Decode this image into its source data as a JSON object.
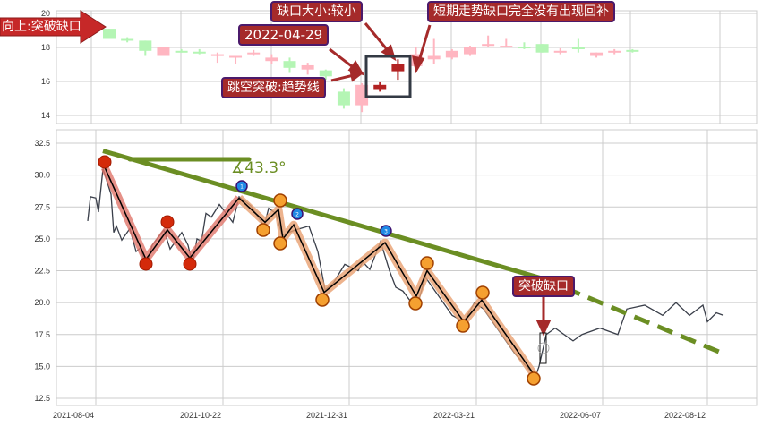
{
  "annotations": {
    "breakout_arrow": "向上:突破缺口",
    "gap_size": "缺口大小:较小",
    "date": "2022-04-29",
    "jump": "跳空突破:趋势线",
    "no_fill": "短期走势缺口完全没有出现回补",
    "breakout_box": "突破缺口",
    "angle": "∡43.3°"
  },
  "chart_data": [
    {
      "type": "candlestick",
      "yticks": [
        "14",
        "16",
        "18",
        "20"
      ],
      "ylim": [
        13.6,
        20.1
      ],
      "grid": true,
      "colors": {
        "up": "#ffb6c1",
        "down": "#b4f5b4",
        "highlight": "#b22222"
      },
      "candles": [
        {
          "o": 18.5,
          "c": 19.1,
          "h": 19.1,
          "l": 18.5,
          "dir": "down"
        },
        {
          "o": 18.5,
          "c": 18.5,
          "h": 18.6,
          "l": 18.3,
          "dir": "down"
        },
        {
          "o": 18.4,
          "c": 17.8,
          "h": 18.4,
          "l": 17.5,
          "dir": "down"
        },
        {
          "o": 17.5,
          "c": 18.0,
          "h": 18.0,
          "l": 17.5,
          "dir": "up"
        },
        {
          "o": 17.8,
          "c": 17.8,
          "h": 17.9,
          "l": 17.7,
          "dir": "down"
        },
        {
          "o": 17.75,
          "c": 17.75,
          "h": 17.9,
          "l": 17.6,
          "dir": "down"
        },
        {
          "o": 17.6,
          "c": 17.6,
          "h": 17.7,
          "l": 17.1,
          "dir": "up"
        },
        {
          "o": 17.5,
          "c": 17.5,
          "h": 17.5,
          "l": 17.0,
          "dir": "up"
        },
        {
          "o": 17.7,
          "c": 17.7,
          "h": 17.85,
          "l": 17.5,
          "dir": "up"
        },
        {
          "o": 17.2,
          "c": 17.4,
          "h": 17.6,
          "l": 17.0,
          "dir": "up"
        },
        {
          "o": 17.2,
          "c": 16.8,
          "h": 17.4,
          "l": 16.5,
          "dir": "down"
        },
        {
          "o": 16.7,
          "c": 16.95,
          "h": 17.1,
          "l": 16.4,
          "dir": "up"
        },
        {
          "o": 16.65,
          "c": 16.3,
          "h": 16.7,
          "l": 16.1,
          "dir": "down"
        },
        {
          "o": 15.4,
          "c": 14.6,
          "h": 15.6,
          "l": 14.4,
          "dir": "down"
        },
        {
          "o": 14.6,
          "c": 15.8,
          "h": 15.9,
          "l": 14.2,
          "dir": "up"
        },
        {
          "o": 15.5,
          "c": 15.8,
          "h": 15.95,
          "l": 15.4,
          "dir": "highlight"
        },
        {
          "o": 16.6,
          "c": 17.05,
          "h": 17.3,
          "l": 16.1,
          "dir": "highlight"
        },
        {
          "o": 16.9,
          "c": 17.6,
          "h": 18.0,
          "l": 16.9,
          "dir": "up"
        },
        {
          "o": 17.3,
          "c": 17.5,
          "h": 18.5,
          "l": 17.0,
          "dir": "up"
        },
        {
          "o": 17.4,
          "c": 17.8,
          "h": 17.9,
          "l": 17.3,
          "dir": "up"
        },
        {
          "o": 17.6,
          "c": 18.0,
          "h": 18.1,
          "l": 17.5,
          "dir": "up"
        },
        {
          "o": 18.2,
          "c": 18.2,
          "h": 18.7,
          "l": 18.0,
          "dir": "up"
        },
        {
          "o": 18.1,
          "c": 18.1,
          "h": 18.5,
          "l": 18.0,
          "dir": "up"
        },
        {
          "o": 18.05,
          "c": 18.05,
          "h": 18.3,
          "l": 17.9,
          "dir": "down"
        },
        {
          "o": 18.2,
          "c": 17.7,
          "h": 18.2,
          "l": 17.7,
          "dir": "down"
        },
        {
          "o": 17.8,
          "c": 17.8,
          "h": 17.95,
          "l": 17.6,
          "dir": "up"
        },
        {
          "o": 18.0,
          "c": 18.0,
          "h": 18.5,
          "l": 17.7,
          "dir": "down"
        },
        {
          "o": 17.5,
          "c": 17.7,
          "h": 17.7,
          "l": 17.4,
          "dir": "up"
        },
        {
          "o": 17.8,
          "c": 17.8,
          "h": 17.9,
          "l": 17.6,
          "dir": "up"
        },
        {
          "o": 17.85,
          "c": 17.85,
          "h": 17.9,
          "l": 17.7,
          "dir": "down"
        }
      ]
    },
    {
      "type": "line",
      "xticks": [
        "2021-08-04",
        "2021-10-22",
        "2021-12-31",
        "2022-03-21",
        "2022-06-07",
        "2022-08-12"
      ],
      "yticks": [
        "12.5",
        "15.0",
        "17.5",
        "20.0",
        "22.5",
        "25.0",
        "27.5",
        "30.0",
        "32.5"
      ],
      "ylim": [
        11.9,
        33.4
      ],
      "grid": true,
      "price": [
        26.4,
        28.3,
        28.2,
        27.1,
        30.5,
        28.5,
        25.5,
        26.0,
        24.9,
        25.8,
        24.0,
        24.3,
        22.8,
        24.5,
        25.7,
        24.2,
        25.5,
        24.5,
        23.0,
        25.0,
        24.8,
        27.0,
        26.7,
        27.7,
        26.3,
        28.3,
        27.6,
        26.0,
        27.4,
        27.0,
        25.3,
        25.7,
        26.0,
        24.0,
        21.0,
        21.5,
        23.0,
        22.5,
        23.2,
        22.6,
        24.8,
        22.5,
        21.2,
        20.9,
        19.5,
        22.0,
        20.5,
        19.0,
        18.5,
        20.0,
        19.5,
        18.0,
        16.0,
        14.2,
        15.0,
        17.5,
        18.0,
        17.0,
        17.5,
        18.0,
        17.5,
        19.5,
        19.8,
        19.0,
        20.0,
        19.0,
        19.8,
        18.5,
        19.2,
        19.0
      ],
      "zigzag_major": [
        30.6,
        23.4,
        25.7,
        23.5,
        28.2
      ],
      "zigzag_minor": [
        28.2,
        26.3,
        27.3,
        25.0,
        26.1,
        20.8,
        24.7,
        20.5,
        22.5,
        18.5,
        20.2,
        14.3
      ],
      "trend_points": [
        "1",
        "2",
        "3"
      ],
      "trendline": {
        "start": 31.9,
        "breakout": 21.9,
        "end": 16.0,
        "color": "#6b8e23",
        "angle_deg": 43.3
      }
    }
  ]
}
